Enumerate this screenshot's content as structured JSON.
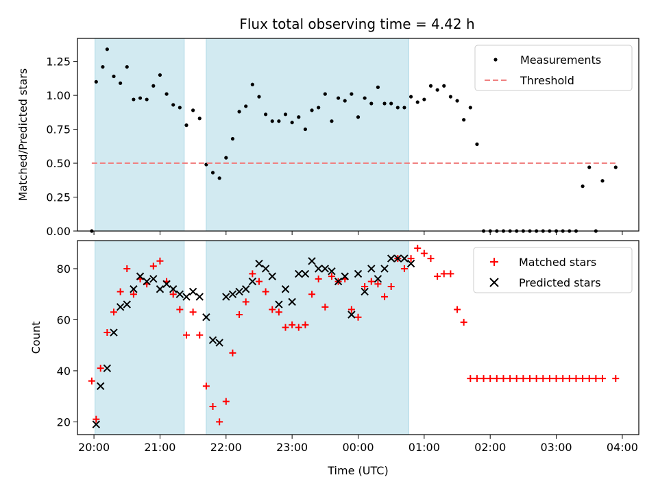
{
  "chart_data": [
    {
      "type": "scatter",
      "title": "Flux total observing time = 4.42 h",
      "ylabel": "Matched/Predicted stars",
      "xlim": [
        "19:45",
        "04:15"
      ],
      "ylim": [
        0.0,
        1.42
      ],
      "y_ticks": [
        0.0,
        0.25,
        0.5,
        0.75,
        1.0,
        1.25
      ],
      "y_tick_labels": [
        "0.00",
        "0.25",
        "0.50",
        "0.75",
        "1.00",
        "1.25"
      ],
      "shaded_intervals": [
        [
          "20:01",
          "21:22"
        ],
        [
          "21:42",
          "00:46"
        ]
      ],
      "shade_color": "#add8e6",
      "legend": {
        "position": "top-right",
        "entries": [
          "Measurements",
          "Threshold"
        ]
      },
      "series": [
        {
          "name": "Measurements",
          "marker": "dot",
          "color": "#000000",
          "x": [
            "19:58",
            "20:02",
            "20:08",
            "20:12",
            "20:18",
            "20:24",
            "20:30",
            "20:36",
            "20:42",
            "20:48",
            "20:54",
            "21:00",
            "21:06",
            "21:12",
            "21:18",
            "21:24",
            "21:30",
            "21:36",
            "21:42",
            "21:48",
            "21:54",
            "22:00",
            "22:06",
            "22:12",
            "22:18",
            "22:24",
            "22:30",
            "22:36",
            "22:42",
            "22:48",
            "22:54",
            "23:00",
            "23:06",
            "23:12",
            "23:18",
            "23:24",
            "23:30",
            "23:36",
            "23:42",
            "23:48",
            "23:54",
            "00:00",
            "00:06",
            "00:12",
            "00:18",
            "00:24",
            "00:30",
            "00:36",
            "00:42",
            "00:48",
            "00:54",
            "01:00",
            "01:06",
            "01:12",
            "01:18",
            "01:24",
            "01:30",
            "01:36",
            "01:42",
            "01:48",
            "01:54",
            "02:00",
            "02:06",
            "02:12",
            "02:18",
            "02:24",
            "02:30",
            "02:36",
            "02:42",
            "02:48",
            "02:54",
            "03:00",
            "03:06",
            "03:12",
            "03:18",
            "03:24",
            "03:30",
            "03:36",
            "03:42",
            "03:54"
          ],
          "y": [
            0.0,
            1.1,
            1.21,
            1.34,
            1.14,
            1.09,
            1.21,
            0.97,
            0.98,
            0.97,
            1.07,
            1.15,
            1.01,
            0.93,
            0.91,
            0.78,
            0.89,
            0.83,
            0.49,
            0.43,
            0.39,
            0.54,
            0.68,
            0.88,
            0.92,
            1.08,
            0.99,
            0.86,
            0.81,
            0.81,
            0.86,
            0.8,
            0.84,
            0.75,
            0.89,
            0.91,
            1.01,
            0.81,
            0.98,
            0.96,
            1.01,
            0.84,
            0.98,
            0.94,
            1.06,
            0.94,
            0.94,
            0.91,
            0.91,
            0.99,
            0.95,
            0.97,
            1.07,
            1.04,
            1.07,
            0.99,
            0.96,
            0.82,
            0.91,
            0.64,
            0.0,
            0.0,
            0.0,
            0.0,
            0.0,
            0.0,
            0.0,
            0.0,
            0.0,
            0.0,
            0.0,
            0.0,
            0.0,
            0.0,
            0.0,
            0.33,
            0.47,
            0.0,
            0.37,
            0.47
          ]
        },
        {
          "name": "Threshold",
          "marker": "dashed-line",
          "color": "#f08080",
          "x": [
            "19:58",
            "03:54"
          ],
          "y": [
            0.5,
            0.5
          ]
        }
      ]
    },
    {
      "type": "scatter",
      "xlabel": "Time (UTC)",
      "ylabel": "Count",
      "xlim": [
        "19:45",
        "04:15"
      ],
      "ylim": [
        15,
        91
      ],
      "x_ticks": [
        "20:00",
        "21:00",
        "22:00",
        "23:00",
        "00:00",
        "01:00",
        "02:00",
        "03:00",
        "04:00"
      ],
      "y_ticks": [
        20,
        40,
        60,
        80
      ],
      "y_tick_labels": [
        "20",
        "40",
        "60",
        "80"
      ],
      "shaded_intervals": [
        [
          "20:01",
          "21:22"
        ],
        [
          "21:42",
          "00:46"
        ]
      ],
      "shade_color": "#add8e6",
      "legend": {
        "position": "top-right",
        "entries": [
          "Matched stars",
          "Predicted stars"
        ]
      },
      "series": [
        {
          "name": "Matched stars",
          "marker": "plus",
          "color": "#ff0000",
          "x": [
            "19:58",
            "20:02",
            "20:06",
            "20:12",
            "20:18",
            "20:24",
            "20:30",
            "20:36",
            "20:42",
            "20:48",
            "20:54",
            "21:00",
            "21:06",
            "21:12",
            "21:18",
            "21:24",
            "21:30",
            "21:36",
            "21:42",
            "21:48",
            "21:54",
            "22:00",
            "22:06",
            "22:12",
            "22:18",
            "22:24",
            "22:30",
            "22:36",
            "22:42",
            "22:48",
            "22:54",
            "23:00",
            "23:06",
            "23:12",
            "23:18",
            "23:24",
            "23:30",
            "23:36",
            "23:42",
            "23:48",
            "23:54",
            "00:00",
            "00:06",
            "00:12",
            "00:18",
            "00:24",
            "00:30",
            "00:36",
            "00:42",
            "00:48",
            "00:54",
            "01:00",
            "01:06",
            "01:12",
            "01:18",
            "01:24",
            "01:30",
            "01:36",
            "01:42",
            "01:48",
            "01:54",
            "02:00",
            "02:06",
            "02:12",
            "02:18",
            "02:24",
            "02:30",
            "02:36",
            "02:42",
            "02:48",
            "02:54",
            "03:00",
            "03:06",
            "03:12",
            "03:18",
            "03:24",
            "03:30",
            "03:36",
            "03:42",
            "03:54"
          ],
          "y": [
            36,
            21,
            41,
            55,
            63,
            71,
            80,
            70,
            76,
            74,
            81,
            83,
            75,
            70,
            64,
            54,
            63,
            54,
            34,
            26,
            20,
            28,
            47,
            62,
            67,
            78,
            75,
            71,
            64,
            63,
            57,
            58,
            57,
            58,
            70,
            76,
            65,
            77,
            75,
            76,
            64,
            61,
            73,
            75,
            74,
            69,
            73,
            84,
            80,
            84,
            88,
            86,
            84,
            77,
            78,
            78,
            64,
            59,
            37,
            37,
            37,
            37,
            37,
            37,
            37,
            37,
            37,
            37,
            37,
            37,
            37,
            37,
            37,
            37,
            37,
            37,
            37,
            37,
            37,
            37
          ]
        },
        {
          "name": "Predicted stars",
          "marker": "x",
          "color": "#000000",
          "x": [
            "20:02",
            "20:06",
            "20:12",
            "20:18",
            "20:24",
            "20:30",
            "20:36",
            "20:42",
            "20:48",
            "20:54",
            "21:00",
            "21:06",
            "21:12",
            "21:18",
            "21:24",
            "21:30",
            "21:36",
            "21:42",
            "21:48",
            "21:54",
            "22:00",
            "22:06",
            "22:12",
            "22:18",
            "22:24",
            "22:30",
            "22:36",
            "22:42",
            "22:48",
            "22:54",
            "23:00",
            "23:06",
            "23:12",
            "23:18",
            "23:24",
            "23:30",
            "23:36",
            "23:42",
            "23:48",
            "23:54",
            "00:00",
            "00:06",
            "00:12",
            "00:18",
            "00:24",
            "00:30",
            "00:36",
            "00:42",
            "00:48"
          ],
          "y": [
            19,
            34,
            41,
            55,
            65,
            66,
            72,
            77,
            75,
            76,
            72,
            74,
            72,
            70,
            69,
            71,
            69,
            61,
            52,
            51,
            69,
            70,
            71,
            72,
            75,
            82,
            80,
            77,
            66,
            72,
            67,
            78,
            78,
            83,
            80,
            80,
            79,
            75,
            77,
            62,
            78,
            71,
            80,
            76,
            80,
            84,
            84,
            84,
            82
          ]
        }
      ]
    }
  ]
}
